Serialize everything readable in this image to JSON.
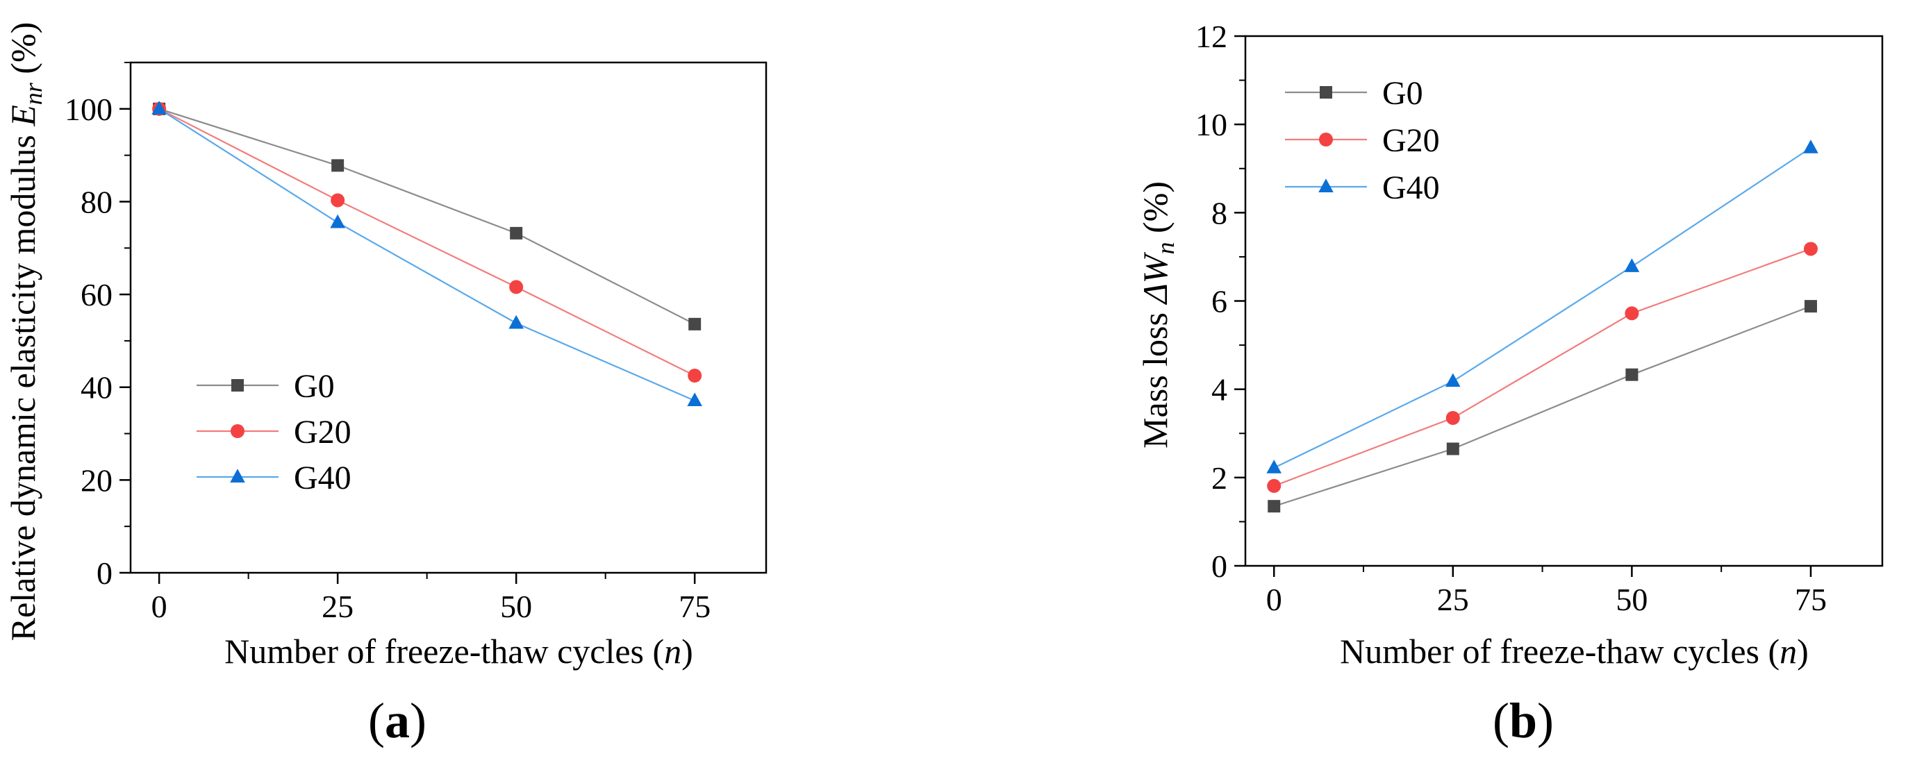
{
  "chart_data": [
    {
      "type": "line",
      "panel_label": "(a)",
      "panel_open": "(",
      "panel_letter": "a",
      "panel_close": ")",
      "title": "",
      "xlabel": "Number of freeze-thaw cycles (n)",
      "xlabel_text": "Number of freeze-thaw cycles (",
      "xlabel_var": "n",
      "xlabel_close": ")",
      "ylabel": "Relative dynamic elasticity modulus Enr (%)",
      "ylabel_text": "Relative dynamic elasticity modulus ",
      "ylabel_var": "E",
      "ylabel_sub": "nr",
      "ylabel_unit": " (%)",
      "x": [
        0,
        25,
        50,
        75
      ],
      "xticks": [
        "0",
        "25",
        "50",
        "75"
      ],
      "yticks": [
        "0",
        "20",
        "40",
        "60",
        "80",
        "100"
      ],
      "ytick_values": [
        0,
        20,
        40,
        60,
        80,
        100
      ],
      "xlim": [
        -4,
        85
      ],
      "ylim": [
        0,
        110
      ],
      "legend_position": "lower-left",
      "series": [
        {
          "name": "G0",
          "marker": "square",
          "color": "#474747",
          "line_color": "#8c8c8c",
          "values": [
            100,
            87.8,
            73.2,
            53.6
          ]
        },
        {
          "name": "G20",
          "marker": "circle",
          "color": "#f44242",
          "line_color": "#f27c7c",
          "values": [
            100,
            80.3,
            61.6,
            42.5
          ]
        },
        {
          "name": "G40",
          "marker": "triangle",
          "color": "#0b6fd6",
          "line_color": "#5aa9ea",
          "values": [
            100,
            75.5,
            53.8,
            37.1
          ]
        }
      ]
    },
    {
      "type": "line",
      "panel_label": "(b)",
      "panel_open": "(",
      "panel_letter": "b",
      "panel_close": ")",
      "title": "",
      "xlabel": "Number of freeze-thaw cycles (n)",
      "xlabel_text": "Number of freeze-thaw cycles (",
      "xlabel_var": "n",
      "xlabel_close": ")",
      "ylabel": "Mass loss ΔWn (%)",
      "ylabel_text": "Mass loss ",
      "ylabel_var": "ΔW",
      "ylabel_sub": "n",
      "ylabel_unit": " (%)",
      "x": [
        0,
        25,
        50,
        75
      ],
      "xticks": [
        "0",
        "25",
        "50",
        "75"
      ],
      "yticks": [
        "0",
        "2",
        "4",
        "6",
        "8",
        "10",
        "12"
      ],
      "ytick_values": [
        0,
        2,
        4,
        6,
        8,
        10,
        12
      ],
      "xlim": [
        -4,
        85
      ],
      "ylim": [
        0,
        12
      ],
      "legend_position": "upper-left",
      "series": [
        {
          "name": "G0",
          "marker": "square",
          "color": "#474747",
          "line_color": "#8c8c8c",
          "values": [
            1.35,
            2.65,
            4.33,
            5.88
          ]
        },
        {
          "name": "G20",
          "marker": "circle",
          "color": "#f44242",
          "line_color": "#f27c7c",
          "values": [
            1.81,
            3.35,
            5.72,
            7.18
          ]
        },
        {
          "name": "G40",
          "marker": "triangle",
          "color": "#0b6fd6",
          "line_color": "#5aa9ea",
          "values": [
            2.22,
            4.18,
            6.78,
            9.47
          ]
        }
      ]
    }
  ]
}
